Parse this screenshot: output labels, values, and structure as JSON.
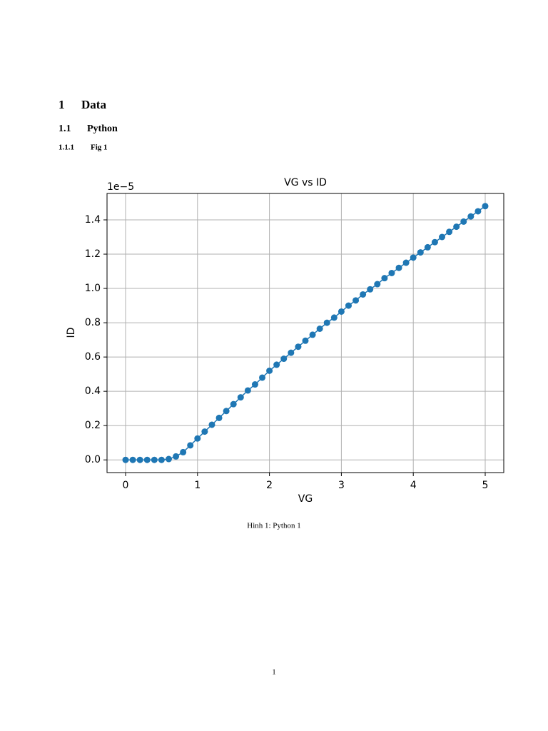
{
  "document": {
    "section": {
      "number": "1",
      "title": "Data"
    },
    "subsection": {
      "number": "1.1",
      "title": "Python"
    },
    "subsubsection": {
      "number": "1.1.1",
      "title": "Fig 1"
    },
    "caption": "Hinh 1: Python 1",
    "page_number": "1"
  },
  "chart_data": {
    "type": "line",
    "title": "VG vs ID",
    "xlabel": "VG",
    "ylabel": "ID",
    "y_offset_label": "1e−5",
    "x": [
      0,
      0.1,
      0.2,
      0.3,
      0.4,
      0.5,
      0.6,
      0.7,
      0.8,
      0.9,
      1,
      1.1,
      1.2,
      1.3,
      1.4,
      1.5,
      1.6,
      1.7,
      1.8,
      1.9,
      2,
      2.1,
      2.2,
      2.3,
      2.4,
      2.5,
      2.6,
      2.7,
      2.8,
      2.9,
      3,
      3.1,
      3.2,
      3.3,
      3.4,
      3.5,
      3.6,
      3.7,
      3.8,
      3.9,
      4,
      4.1,
      4.2,
      4.3,
      4.4,
      4.5,
      4.6,
      4.7,
      4.8,
      4.9,
      5
    ],
    "series": [
      {
        "name": "ID",
        "color": "#1f77b4",
        "values": [
          0,
          0,
          0,
          0,
          0,
          0,
          0.005,
          0.02,
          0.045,
          0.085,
          0.125,
          0.165,
          0.205,
          0.245,
          0.285,
          0.325,
          0.365,
          0.405,
          0.44,
          0.48,
          0.52,
          0.555,
          0.59,
          0.625,
          0.66,
          0.695,
          0.73,
          0.765,
          0.8,
          0.83,
          0.865,
          0.9,
          0.93,
          0.965,
          0.995,
          1.025,
          1.06,
          1.09,
          1.12,
          1.15,
          1.18,
          1.21,
          1.24,
          1.27,
          1.3,
          1.33,
          1.36,
          1.39,
          1.42,
          1.45,
          1.48
        ]
      }
    ],
    "xlim": [
      -0.258,
      5.258
    ],
    "ylim": [
      -0.074,
      1.554
    ],
    "xticks": [
      0,
      1,
      2,
      3,
      4,
      5
    ],
    "yticks": [
      {
        "value": 0,
        "label": "0.0"
      },
      0.2,
      0.4,
      0.6,
      0.8,
      {
        "value": 1,
        "label": "1.0"
      },
      1.2,
      1.4
    ],
    "grid": true,
    "markers": true
  }
}
